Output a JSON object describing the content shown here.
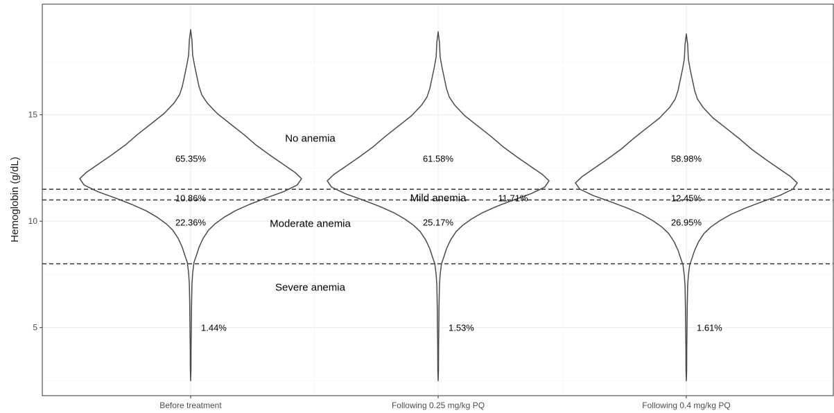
{
  "chart_data": {
    "type": "violin",
    "title": "",
    "xlabel": "",
    "ylabel": "Hemoglobin (g/dL)",
    "ylim": [
      1.8,
      20.2
    ],
    "yticks": [
      5,
      10,
      15
    ],
    "grid": true,
    "categories": [
      "Before treatment",
      "Following 0.25 mg/kg PQ",
      "Following 0.4 mg/kg PQ"
    ],
    "groups": [
      {
        "name": "Before treatment",
        "min": 2.5,
        "max": 19.0,
        "mode": 12.0
      },
      {
        "name": "Following 0.25 mg/kg PQ",
        "min": 2.5,
        "max": 18.9,
        "mode": 11.9
      },
      {
        "name": "Following 0.4 mg/kg PQ",
        "min": 2.5,
        "max": 18.8,
        "mode": 11.8
      }
    ],
    "thresholds": [
      11.5,
      11.0,
      8.0
    ],
    "regions": [
      {
        "label": "No anemia",
        "y": 13.9,
        "x_between": [
          0,
          1
        ]
      },
      {
        "label": "Mild anemia",
        "y": 11.1,
        "x_between": [
          1,
          1
        ]
      },
      {
        "label": "Moderate anemia",
        "y": 9.9,
        "x_between": [
          0,
          1
        ]
      },
      {
        "label": "Severe anemia",
        "y": 6.9,
        "x_between": [
          0,
          1
        ]
      }
    ],
    "percentages": [
      {
        "group": 0,
        "no_anemia": "65.35%",
        "mild": "10.86%",
        "moderate": "22.36%",
        "severe": "1.44%"
      },
      {
        "group": 1,
        "no_anemia": "61.58%",
        "mild": "11.71%",
        "moderate": "25.17%",
        "severe": "1.53%"
      },
      {
        "group": 2,
        "no_anemia": "58.98%",
        "mild": "12.45%",
        "moderate": "26.95%",
        "severe": "1.61%"
      }
    ]
  }
}
